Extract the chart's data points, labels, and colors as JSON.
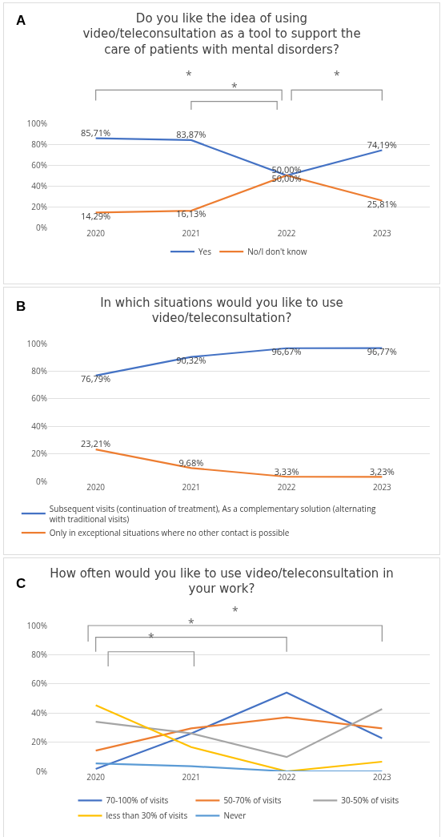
{
  "chart_data": [
    {
      "type": "line",
      "title": "Do you like the idea of using video/teleconsultation as a tool to support the care of patients with mental disorders?",
      "annotations": [
        "A",
        "*",
        "*",
        "*"
      ],
      "categories": [
        "2020",
        "2021",
        "2022",
        "2023"
      ],
      "series": [
        {
          "name": "Yes",
          "color": "#4472c4",
          "values": [
            85.71,
            83.87,
            50.0,
            74.19
          ],
          "value_labels": [
            "85,71%",
            "83,87%",
            "50,00%",
            "74,19%"
          ]
        },
        {
          "name": "No/I don't know",
          "color": "#ed7d31",
          "values": [
            14.29,
            16.13,
            50.0,
            25.81
          ],
          "value_labels": [
            "14,29%",
            "16,13%",
            "50,00%",
            "25,81%"
          ]
        }
      ],
      "ylim": [
        0,
        100
      ],
      "yticks": [
        {
          "value": 0,
          "label": "0%"
        },
        {
          "value": 20,
          "label": "20%"
        },
        {
          "value": 40,
          "label": "40%"
        },
        {
          "value": 60,
          "label": "60%"
        },
        {
          "value": 80,
          "label": "80%"
        },
        {
          "value": 100,
          "label": "100%"
        }
      ],
      "grid": "y",
      "legend": "bottom",
      "marker": "none",
      "line_style": "solid"
    },
    {
      "type": "line",
      "title": "In which situations would you like to use video/teleconsultation?",
      "annotations": [
        "B"
      ],
      "categories": [
        "2020",
        "2021",
        "2022",
        "2023"
      ],
      "series": [
        {
          "name": "Subsequent visits (continuation of treatment), As a complementary solution (alternating with traditional visits)",
          "color": "#4472c4",
          "values": [
            76.79,
            90.32,
            96.67,
            96.77
          ],
          "value_labels": [
            "76,79%",
            "90,32%",
            "96,67%",
            "96,77%"
          ]
        },
        {
          "name": "Only in exceptional situations where no other contact is possible",
          "color": "#ed7d31",
          "values": [
            23.21,
            9.68,
            3.33,
            3.23
          ],
          "value_labels": [
            "23,21%",
            "9,68%",
            "3,33%",
            "3,23%"
          ]
        }
      ],
      "ylim": [
        0,
        100
      ],
      "yticks": [
        {
          "value": 0,
          "label": "0%"
        },
        {
          "value": 20,
          "label": "20%"
        },
        {
          "value": 40,
          "label": "40%"
        },
        {
          "value": 60,
          "label": "60%"
        },
        {
          "value": 80,
          "label": "80%"
        },
        {
          "value": 100,
          "label": "100%"
        }
      ],
      "grid": "y",
      "legend": "bottom",
      "marker": "none",
      "line_style": "solid"
    },
    {
      "type": "line",
      "title": "How often would you like to use video/teleconsultation in your work?",
      "annotations": [
        "C",
        "*",
        "*",
        "*"
      ],
      "categories": [
        "2020",
        "2021",
        "2022",
        "2023"
      ],
      "series": [
        {
          "name": "70-100% of visits",
          "color": "#4472c4",
          "values": [
            1.6,
            26,
            54,
            22.7
          ]
        },
        {
          "name": "50-70% of visits",
          "color": "#ed7d31",
          "values": [
            14.2,
            29.5,
            37,
            29.5
          ]
        },
        {
          "name": "30-50% of visits",
          "color": "#a5a5a5",
          "values": [
            34,
            26,
            9.8,
            42.7
          ]
        },
        {
          "name": "less than 30% of visits",
          "color": "#ffc000",
          "values": [
            45.3,
            16.6,
            0,
            6.6
          ]
        },
        {
          "name": "Never",
          "color": "#5b9bd5",
          "values": [
            5.4,
            3.5,
            0,
            0
          ]
        }
      ],
      "ylim": [
        0,
        100
      ],
      "yticks": [
        {
          "value": 0,
          "label": "0%"
        },
        {
          "value": 20,
          "label": "20%"
        },
        {
          "value": 40,
          "label": "40%"
        },
        {
          "value": 60,
          "label": "60%"
        },
        {
          "value": 80,
          "label": "80%"
        },
        {
          "value": 100,
          "label": "100%"
        }
      ],
      "grid": "y",
      "legend": "bottom",
      "marker": "none",
      "line_style": "solid"
    }
  ]
}
